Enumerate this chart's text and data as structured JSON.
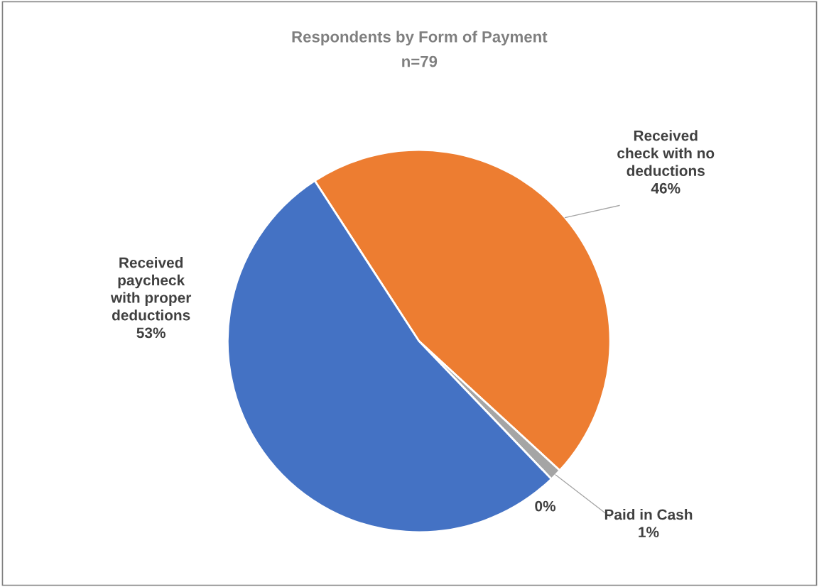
{
  "chart_data": {
    "type": "pie",
    "title": "Respondents by Form of Payment",
    "subtitle": "n=79",
    "categories": [
      "Received check with no deductions",
      "Paid in Cash",
      null,
      "Received paycheck with proper deductions"
    ],
    "values": [
      46,
      1,
      0,
      53
    ],
    "colors": [
      "#ed7d31",
      "#a5a5a5",
      "#ffc000",
      "#4472c4"
    ],
    "value_labels": [
      "46%",
      "1%",
      "0%",
      "53%"
    ]
  }
}
